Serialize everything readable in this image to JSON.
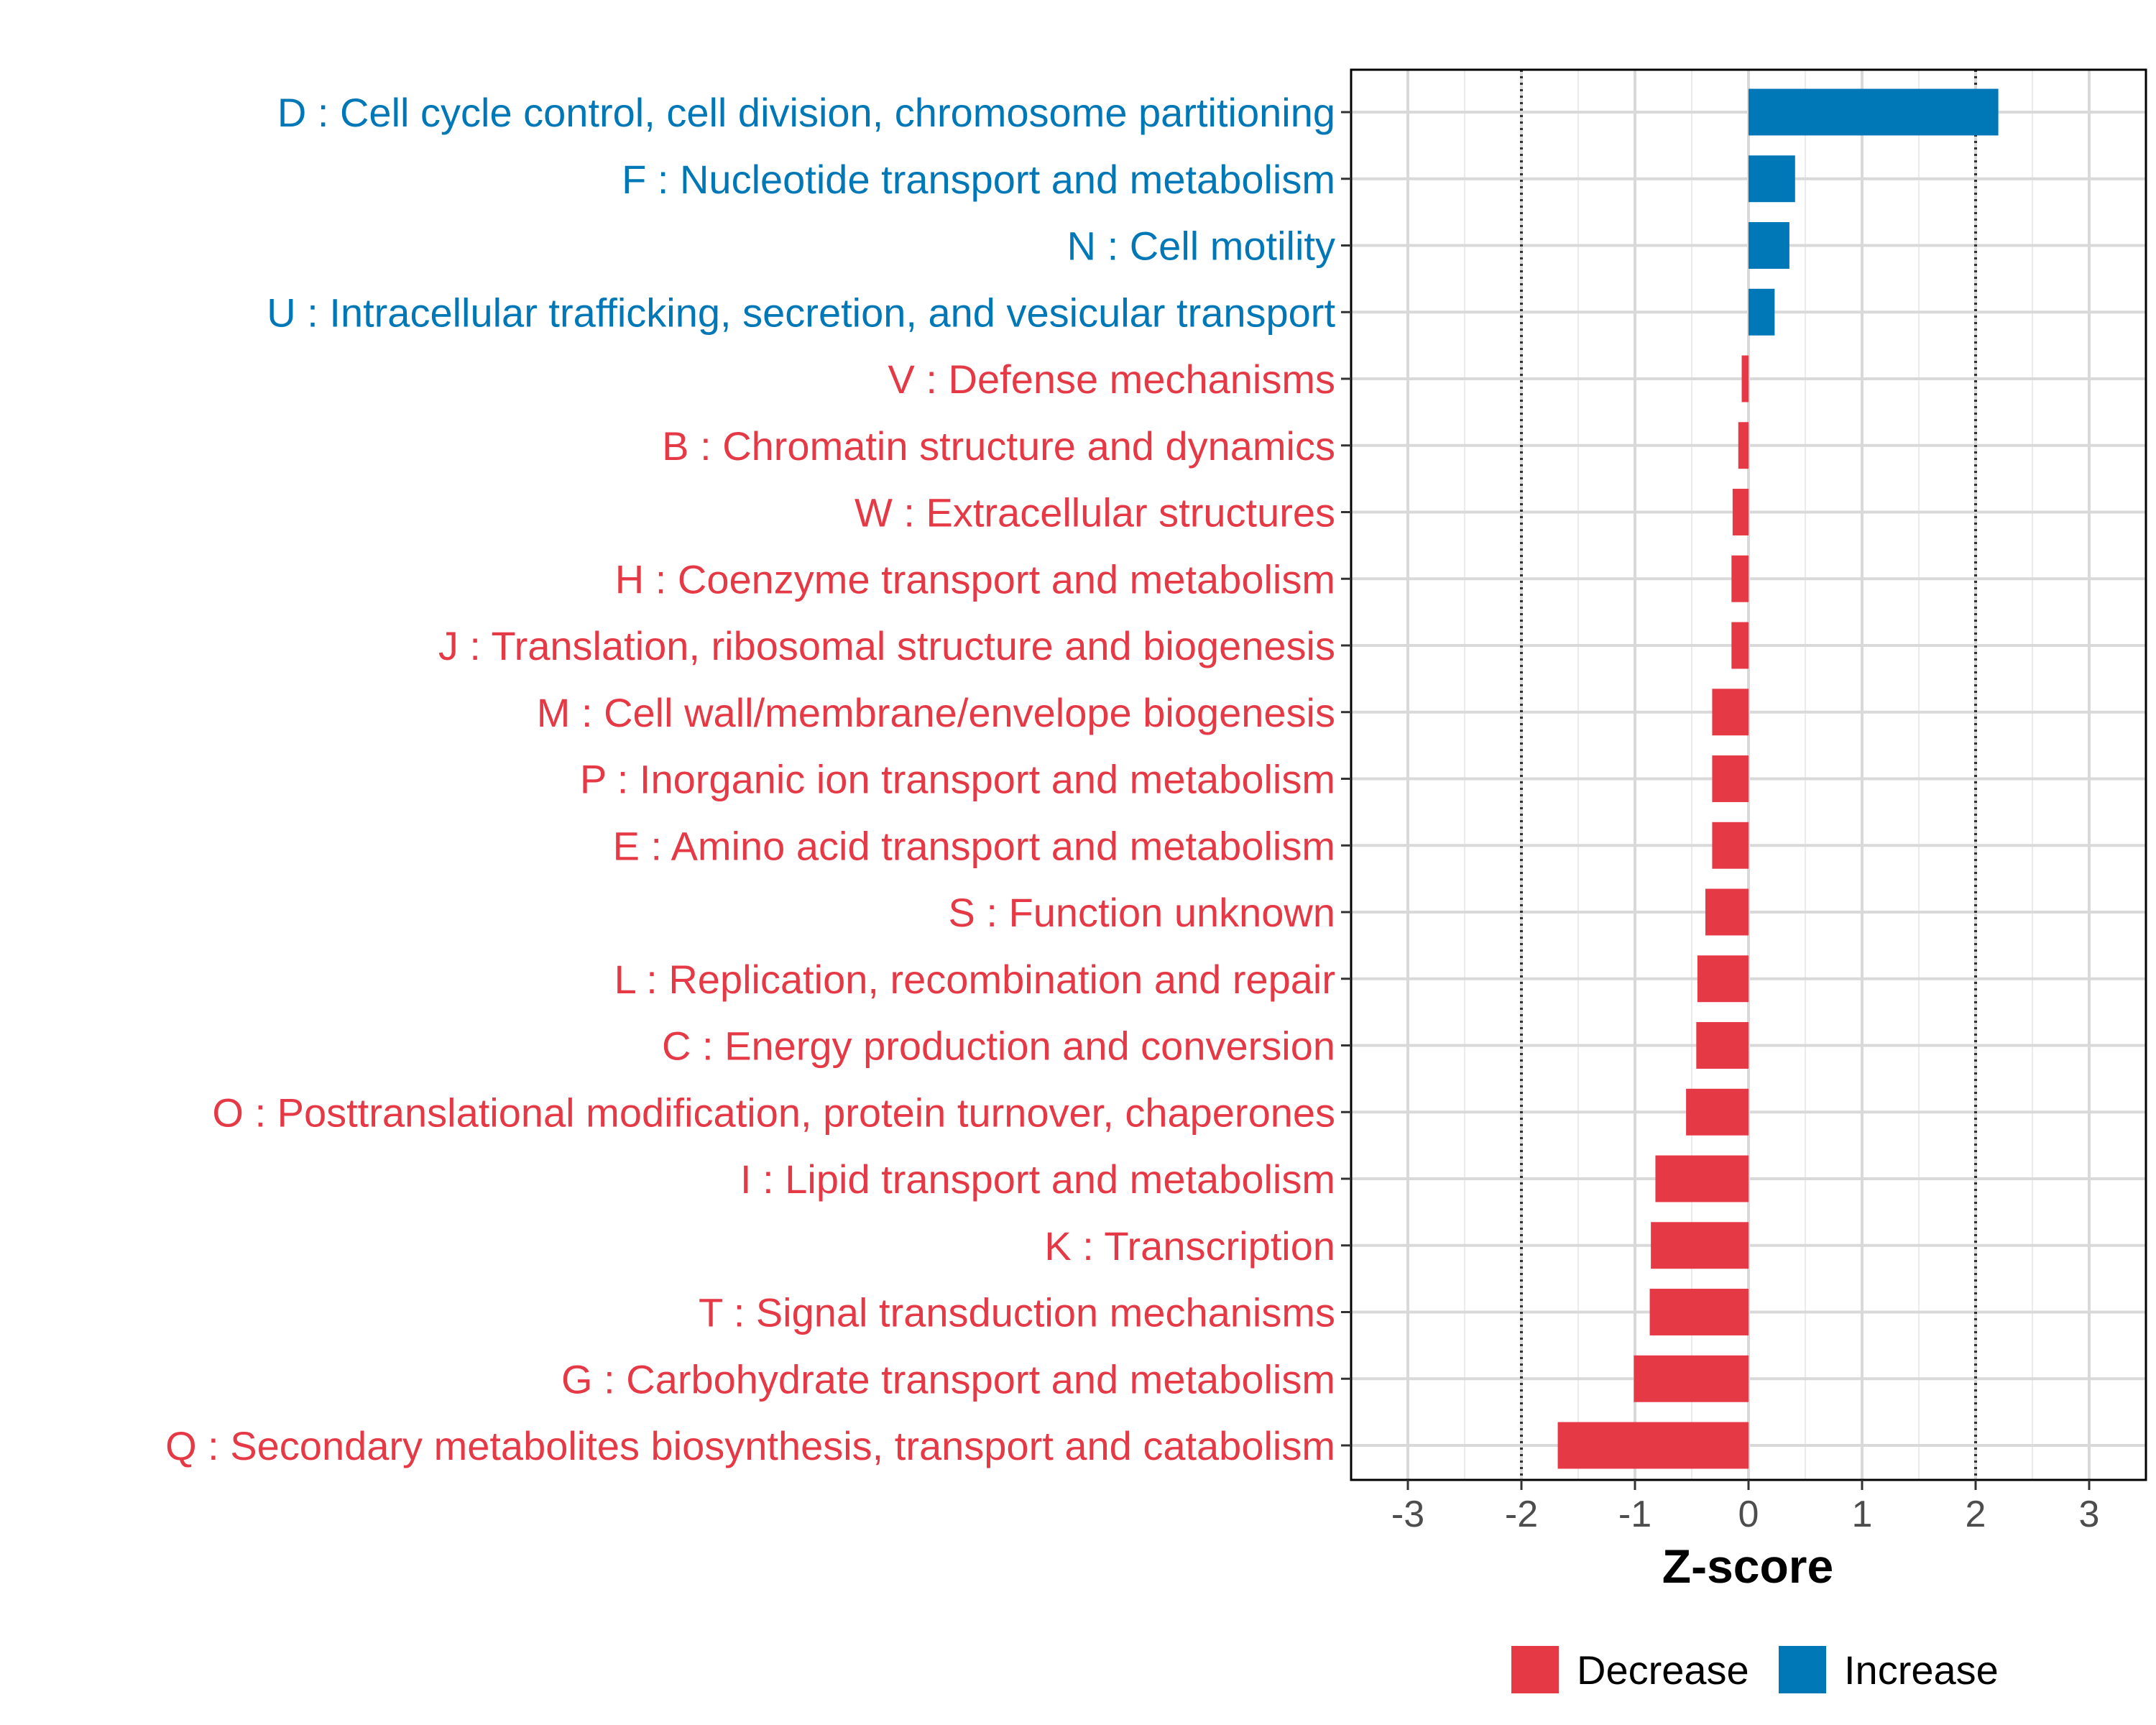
{
  "chart_data": {
    "type": "bar",
    "orientation": "horizontal",
    "xlabel": "Z-score",
    "xlim": [
      -3.5,
      3.5
    ],
    "xticks": [
      -3,
      -2,
      -1,
      0,
      1,
      2,
      3
    ],
    "xtick_labels": [
      "-3",
      "-2",
      "-1",
      "0",
      "1",
      "2",
      "3"
    ],
    "reference_lines": [
      -2,
      2
    ],
    "grid": true,
    "colors": {
      "Decrease": "#E63946",
      "Increase": "#0077B6"
    },
    "legend": {
      "position": "bottom",
      "entries": [
        {
          "label": "Decrease",
          "color": "#E63946"
        },
        {
          "label": "Increase",
          "color": "#0077B6"
        }
      ]
    },
    "categories": [
      "D : Cell cycle control, cell division, chromosome partitioning",
      "F : Nucleotide transport and metabolism",
      "N : Cell motility",
      "U : Intracellular trafficking, secretion, and vesicular transport",
      "V : Defense mechanisms",
      "B : Chromatin structure and dynamics",
      "W : Extracellular structures",
      "H : Coenzyme transport and metabolism",
      "J : Translation, ribosomal structure and biogenesis",
      "M : Cell wall/membrane/envelope biogenesis",
      "P : Inorganic ion transport and metabolism",
      "E : Amino acid transport and metabolism",
      "S : Function unknown",
      "L : Replication, recombination and repair",
      "C : Energy production and conversion",
      "O : Posttranslational modification, protein turnover, chaperones",
      "I : Lipid transport and metabolism",
      "K : Transcription",
      "T : Signal transduction mechanisms",
      "G : Carbohydrate transport and metabolism",
      "Q : Secondary metabolites biosynthesis, transport and catabolism"
    ],
    "values": [
      2.2,
      0.41,
      0.36,
      0.23,
      -0.06,
      -0.09,
      -0.14,
      -0.15,
      -0.15,
      -0.32,
      -0.32,
      -0.32,
      -0.38,
      -0.45,
      -0.46,
      -0.55,
      -0.82,
      -0.86,
      -0.87,
      -1.01,
      -1.68
    ],
    "groups": [
      "Increase",
      "Increase",
      "Increase",
      "Increase",
      "Decrease",
      "Decrease",
      "Decrease",
      "Decrease",
      "Decrease",
      "Decrease",
      "Decrease",
      "Decrease",
      "Decrease",
      "Decrease",
      "Decrease",
      "Decrease",
      "Decrease",
      "Decrease",
      "Decrease",
      "Decrease",
      "Decrease"
    ]
  }
}
